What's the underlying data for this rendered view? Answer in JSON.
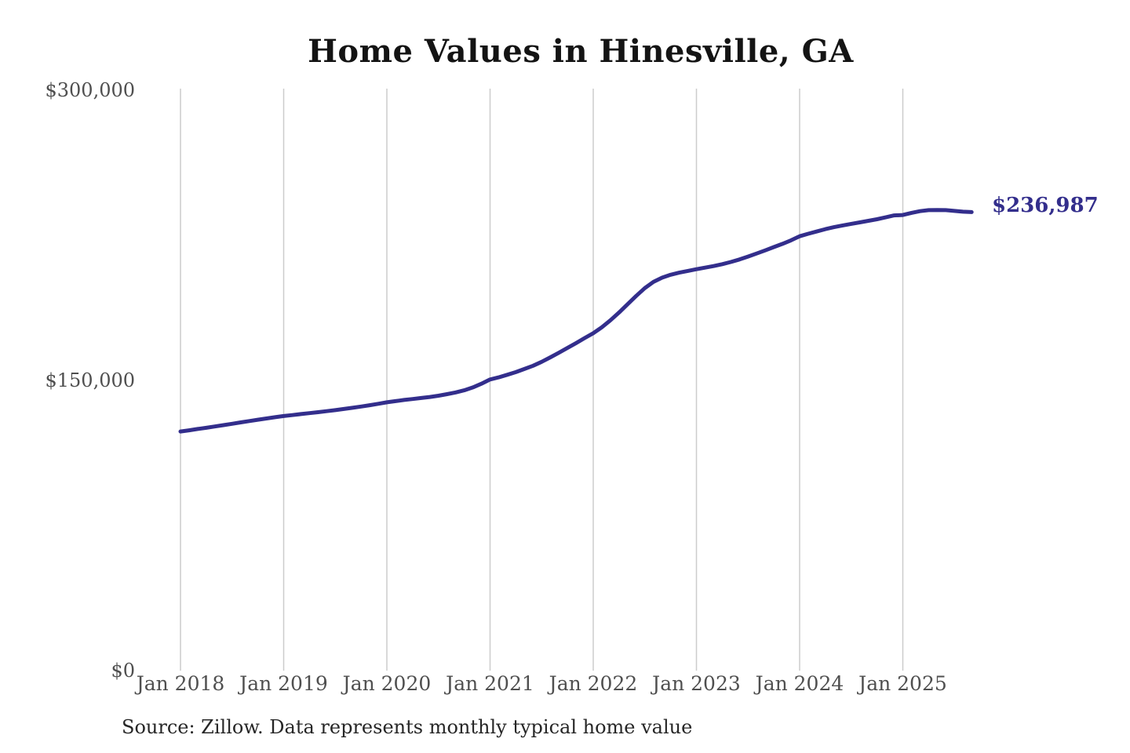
{
  "title": "Home Values in Hinesville, GA",
  "annotation": {
    "end_value_label": "$236,987"
  },
  "source_note": "Source: Zillow. Data represents monthly typical home value",
  "colors": {
    "line": "#332e8c",
    "grid": "#cccccc",
    "axis_text": "#4f4f4f",
    "title": "#141414",
    "source": "#262626",
    "background": "#ffffff"
  },
  "chart_data": {
    "type": "line",
    "title": "Home Values in Hinesville, GA",
    "xlabel": "",
    "ylabel": "",
    "x_start": "2018-01",
    "x_end": "2025-09",
    "x_frequency": "monthly",
    "x_tick_labels": [
      "Jan 2018",
      "Jan 2019",
      "Jan 2020",
      "Jan 2021",
      "Jan 2022",
      "Jan 2023",
      "Jan 2024",
      "Jan 2025"
    ],
    "y_tick_labels": [
      "$0",
      "$150,000",
      "$300,000"
    ],
    "y_tick_values": [
      0,
      150000,
      300000
    ],
    "ylim": [
      0,
      300000
    ],
    "grid": "vertical-only",
    "legend_position": "none",
    "end_value": 236987,
    "end_point_label": "$236,987",
    "series": [
      {
        "name": "Monthly typical home value (USD)",
        "values": [
          123600,
          124200,
          124900,
          125500,
          126200,
          126900,
          127600,
          128300,
          129000,
          129700,
          130350,
          131000,
          131600,
          132100,
          132600,
          133100,
          133600,
          134100,
          134650,
          135250,
          135850,
          136500,
          137200,
          137900,
          138700,
          139300,
          139900,
          140400,
          140900,
          141450,
          142100,
          142900,
          143800,
          144900,
          146400,
          148300,
          150500,
          151600,
          152900,
          154300,
          155900,
          157600,
          159600,
          161900,
          164300,
          166800,
          169300,
          171900,
          174400,
          177500,
          181100,
          185100,
          189400,
          193700,
          197700,
          200900,
          203100,
          204600,
          205700,
          206600,
          207500,
          208300,
          209100,
          210100,
          211200,
          212500,
          214000,
          215600,
          217200,
          218900,
          220600,
          222400,
          224500,
          225800,
          227000,
          228200,
          229200,
          230100,
          230900,
          231700,
          232500,
          233300,
          234300,
          235300,
          235500,
          236600,
          237500,
          238000,
          238100,
          238000,
          237600,
          237200,
          236987
        ]
      }
    ]
  }
}
